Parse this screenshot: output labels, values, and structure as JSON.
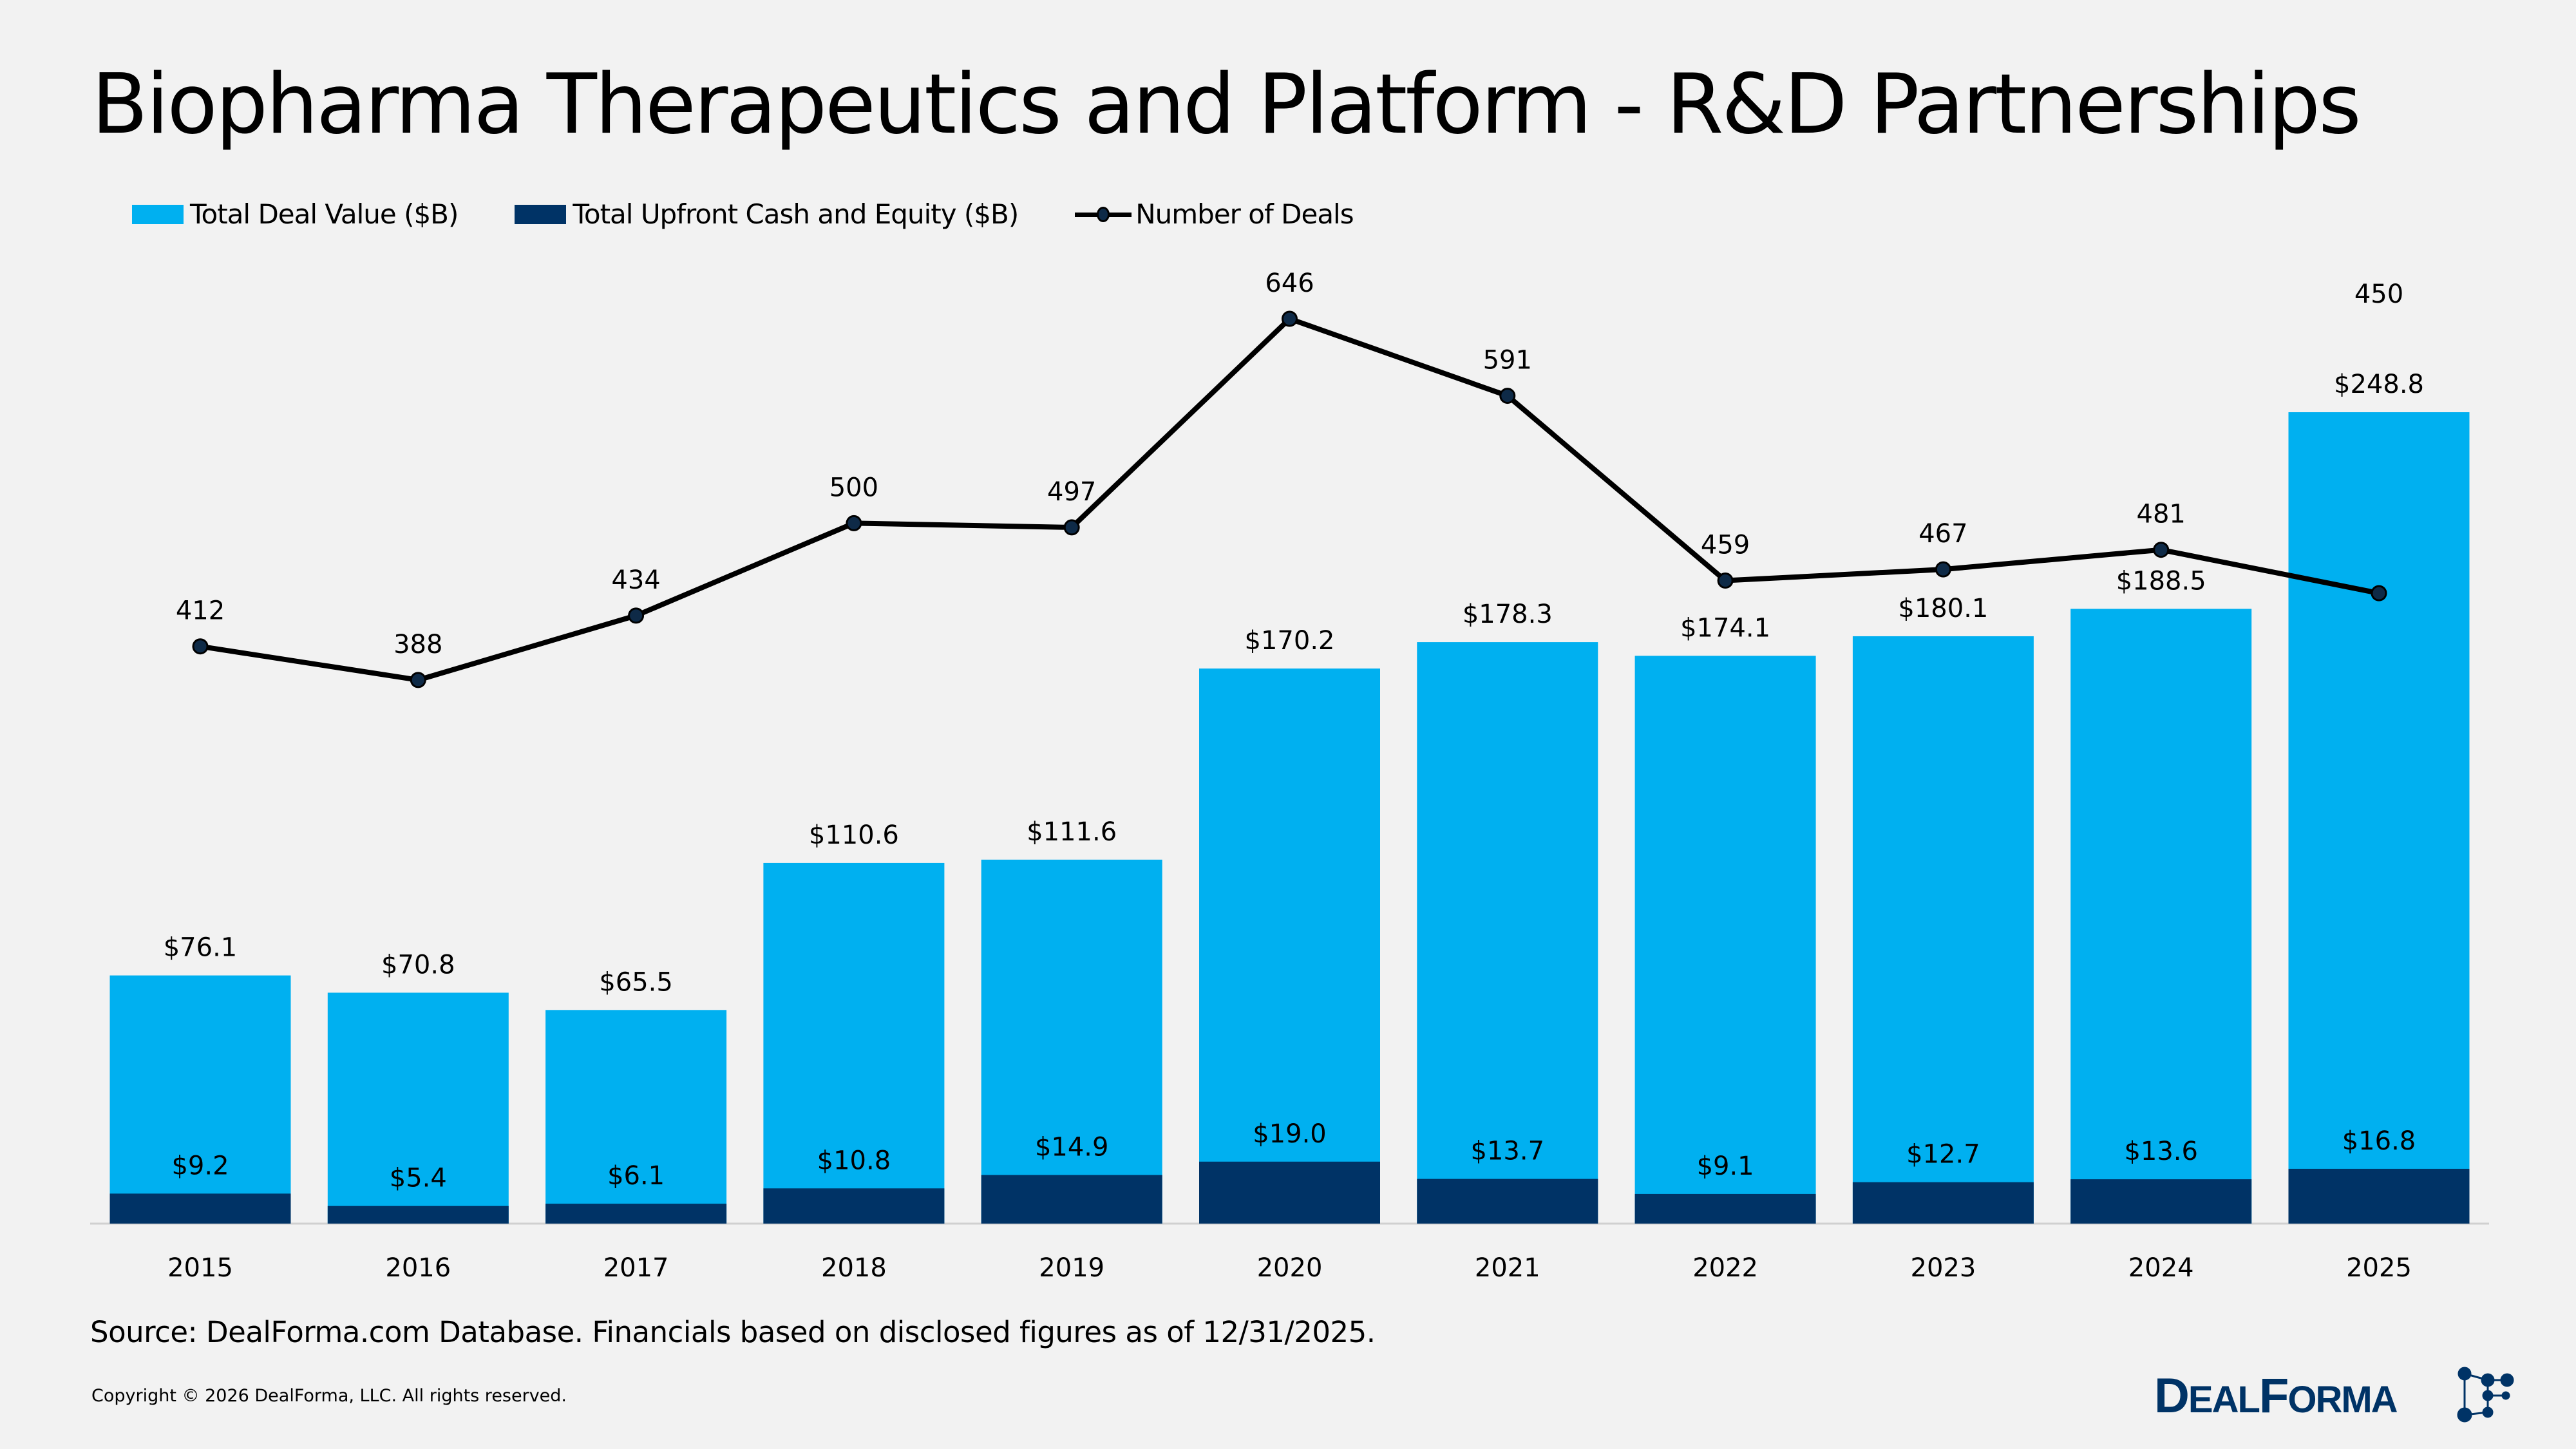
{
  "title": "Biopharma Therapeutics and Platform - R&D Partnerships",
  "colors": {
    "total": "#00b0f0",
    "upfront": "#003366",
    "line": "#000000",
    "background": "#f2f2f2"
  },
  "legend": [
    {
      "label": "Total Deal Value ($B)",
      "type": "bar",
      "color": "#00b0f0"
    },
    {
      "label": "Total Upfront Cash and Equity ($B)",
      "type": "bar",
      "color": "#003366"
    },
    {
      "label": "Number of Deals",
      "type": "line-marker",
      "color": "#000000"
    }
  ],
  "chart_data": {
    "type": "bar",
    "title": "Biopharma Therapeutics and Platform - R&D Partnerships",
    "categories": [
      "2015",
      "2016",
      "2017",
      "2018",
      "2019",
      "2020",
      "2021",
      "2022",
      "2023",
      "2024",
      "2025"
    ],
    "series": [
      {
        "name": "Total Deal Value ($B)",
        "type": "bar",
        "labels": [
          "$76.1",
          "$70.8",
          "$65.5",
          "$110.6",
          "$111.6",
          "$170.2",
          "$178.3",
          "$174.1",
          "$180.1",
          "$188.5",
          "$248.8"
        ],
        "values": [
          76.1,
          70.8,
          65.5,
          110.6,
          111.6,
          170.2,
          178.3,
          174.1,
          180.1,
          188.5,
          248.8
        ]
      },
      {
        "name": "Total Upfront Cash and Equity ($B)",
        "type": "bar",
        "labels": [
          "$9.2",
          "$5.4",
          "$6.1",
          "$10.8",
          "$14.9",
          "$19.0",
          "$13.7",
          "$9.1",
          "$12.7",
          "$13.6",
          "$16.8"
        ],
        "values": [
          9.2,
          5.4,
          6.1,
          10.8,
          14.9,
          19.0,
          13.7,
          9.1,
          12.7,
          13.6,
          16.8
        ]
      },
      {
        "name": "Number of Deals",
        "type": "line",
        "axis": "secondary",
        "labels": [
          "412",
          "388",
          "434",
          "500",
          "497",
          "646",
          "591",
          "459",
          "467",
          "481",
          "450"
        ],
        "values": [
          412,
          388,
          434,
          500,
          497,
          646,
          591,
          459,
          467,
          481,
          450
        ]
      }
    ],
    "bars_overlap": true,
    "grid": false,
    "axes_visible": false,
    "legend_position": "top-left"
  },
  "source": "Source: DealForma.com Database. Financials based on disclosed figures as of 12/31/2025.",
  "copyright": "Copyright © 2026 DealForma, LLC. All rights reserved.",
  "logo": {
    "text": "DealForma",
    "mark": "®"
  }
}
